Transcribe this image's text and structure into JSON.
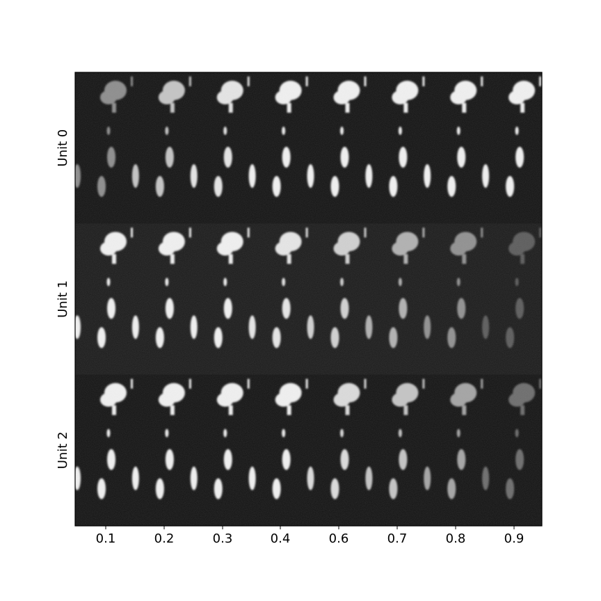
{
  "chart_data": {
    "type": "heatmap",
    "title": "",
    "xlabel": "",
    "ylabel": "",
    "colormap": "grayscale",
    "background_color": "#141414",
    "foreground_color": "#ffffff",
    "frame_color": "#000000",
    "x_ticks": [
      "0.1",
      "0.2",
      "0.3",
      "0.4",
      "0.6",
      "0.7",
      "0.8",
      "0.9"
    ],
    "rows": [
      {
        "label": "Unit 0",
        "intensity": [
          0.55,
          0.8,
          0.95,
          1.0,
          1.0,
          1.0,
          1.0,
          1.0
        ]
      },
      {
        "label": "Unit 1",
        "intensity": [
          1.0,
          1.0,
          1.0,
          0.95,
          0.85,
          0.7,
          0.55,
          0.3
        ]
      },
      {
        "label": "Unit 2",
        "intensity": [
          1.0,
          1.0,
          1.0,
          1.0,
          0.9,
          0.8,
          0.65,
          0.4
        ]
      }
    ]
  }
}
